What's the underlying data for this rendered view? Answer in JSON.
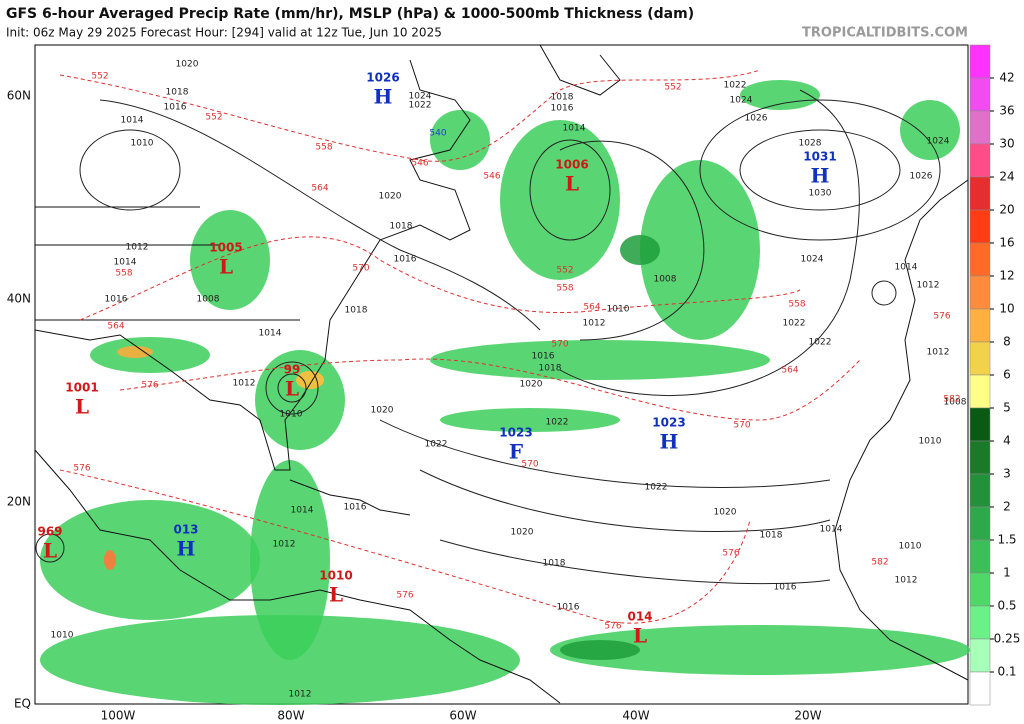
{
  "header": {
    "title": "GFS 6-hour Averaged Precip Rate (mm/hr), MSLP (hPa) & 1000-500mb Thickness (dam)",
    "subtitle": "Init: 06z May 29 2025   Forecast Hour: [294]   valid at 12z Tue, Jun 10 2025",
    "site": "TROPICALTIDBITS.COM"
  },
  "latitude_labels": [
    "60N",
    "40N",
    "20N",
    "EQ"
  ],
  "longitude_labels": [
    "100W",
    "80W",
    "60W",
    "40W",
    "20W"
  ],
  "colorbar": {
    "ticks": [
      42,
      36,
      30,
      24,
      20,
      16,
      12,
      10,
      8,
      6,
      5,
      4,
      3,
      2,
      1.5,
      1,
      0.5,
      0.25,
      0.1
    ],
    "colors": [
      "#ff33ff",
      "#f04cf0",
      "#e070c8",
      "#ff4d8a",
      "#e62e2e",
      "#ff3c14",
      "#ff6a28",
      "#ff8c3c",
      "#ffb040",
      "#f2d24a",
      "#ffff88",
      "#0a5a14",
      "#1a7a28",
      "#23903a",
      "#2ea84a",
      "#3cbf58",
      "#4fd868",
      "#6cf088",
      "#a8ffb8",
      "#ffffff"
    ]
  },
  "pressure_centers": [
    {
      "letter": "H",
      "value": "1026",
      "color": "#1030c0"
    },
    {
      "letter": "L",
      "value": "1006",
      "color": "#d01818"
    },
    {
      "letter": "H",
      "value": "1031",
      "color": "#1030c0"
    },
    {
      "letter": "L",
      "value": "1005",
      "color": "#d01818"
    },
    {
      "letter": "L",
      "value": "1001",
      "color": "#d01818"
    },
    {
      "letter": "L",
      "value": "99",
      "color": "#d01818"
    },
    {
      "letter": "F",
      "value": "1023",
      "color": "#1030c0"
    },
    {
      "letter": "H",
      "value": "1023",
      "color": "#1030c0"
    },
    {
      "letter": "L",
      "value": "969",
      "color": "#d01818"
    },
    {
      "letter": "H",
      "value": "013",
      "color": "#1030c0"
    },
    {
      "letter": "L",
      "value": "1010",
      "color": "#d01818"
    },
    {
      "letter": "L",
      "value": "014",
      "color": "#d01818"
    }
  ],
  "contour_labels": [
    {
      "text": "1020",
      "color": "#222"
    },
    {
      "text": "1018",
      "color": "#222"
    },
    {
      "text": "1016",
      "color": "#222"
    },
    {
      "text": "1014",
      "color": "#222"
    },
    {
      "text": "1010",
      "color": "#222"
    },
    {
      "text": "1012",
      "color": "#222"
    },
    {
      "text": "1014",
      "color": "#222"
    },
    {
      "text": "1016",
      "color": "#222"
    },
    {
      "text": "1008",
      "color": "#222"
    },
    {
      "text": "1014",
      "color": "#222"
    },
    {
      "text": "1012",
      "color": "#222"
    },
    {
      "text": "1010",
      "color": "#222"
    },
    {
      "text": "1020",
      "color": "#222"
    },
    {
      "text": "1022",
      "color": "#222"
    },
    {
      "text": "1018",
      "color": "#222"
    },
    {
      "text": "1016",
      "color": "#222"
    },
    {
      "text": "1020",
      "color": "#222"
    },
    {
      "text": "1022",
      "color": "#222"
    },
    {
      "text": "1022",
      "color": "#222"
    },
    {
      "text": "1020",
      "color": "#222"
    },
    {
      "text": "1018",
      "color": "#222"
    },
    {
      "text": "1016",
      "color": "#222"
    },
    {
      "text": "1020",
      "color": "#222"
    },
    {
      "text": "1018",
      "color": "#222"
    },
    {
      "text": "1016",
      "color": "#222"
    },
    {
      "text": "1024",
      "color": "#222"
    },
    {
      "text": "1022",
      "color": "#222"
    },
    {
      "text": "1022",
      "color": "#222"
    },
    {
      "text": "1030",
      "color": "#222"
    },
    {
      "text": "1028",
      "color": "#222"
    },
    {
      "text": "1026",
      "color": "#222"
    },
    {
      "text": "1024",
      "color": "#222"
    },
    {
      "text": "1022",
      "color": "#222"
    },
    {
      "text": "1018",
      "color": "#222"
    },
    {
      "text": "1016",
      "color": "#222"
    },
    {
      "text": "1014",
      "color": "#222"
    },
    {
      "text": "1012",
      "color": "#222"
    },
    {
      "text": "1010",
      "color": "#222"
    },
    {
      "text": "1008",
      "color": "#222"
    },
    {
      "text": "1016",
      "color": "#222"
    },
    {
      "text": "1014",
      "color": "#222"
    },
    {
      "text": "1012",
      "color": "#222"
    },
    {
      "text": "1014",
      "color": "#222"
    },
    {
      "text": "1010",
      "color": "#222"
    },
    {
      "text": "1012",
      "color": "#222"
    },
    {
      "text": "1014",
      "color": "#222"
    },
    {
      "text": "1012",
      "color": "#222"
    },
    {
      "text": "1012",
      "color": "#222"
    },
    {
      "text": "1008",
      "color": "#222"
    },
    {
      "text": "1010",
      "color": "#222"
    },
    {
      "text": "1024",
      "color": "#222"
    },
    {
      "text": "1026",
      "color": "#222"
    },
    {
      "text": "1010",
      "color": "#222"
    },
    {
      "text": "1012",
      "color": "#222"
    },
    {
      "text": "1018",
      "color": "#222"
    },
    {
      "text": "1016",
      "color": "#222"
    },
    {
      "text": "1018",
      "color": "#222"
    },
    {
      "text": "1020",
      "color": "#222"
    },
    {
      "text": "1024",
      "color": "#222"
    },
    {
      "text": "1022",
      "color": "#222"
    },
    {
      "text": "552",
      "color": "#e03030"
    },
    {
      "text": "552",
      "color": "#e03030"
    },
    {
      "text": "558",
      "color": "#e03030"
    },
    {
      "text": "564",
      "color": "#e03030"
    },
    {
      "text": "546",
      "color": "#e03030"
    },
    {
      "text": "540",
      "color": "#2040d0"
    },
    {
      "text": "546",
      "color": "#e03030"
    },
    {
      "text": "552",
      "color": "#e03030"
    },
    {
      "text": "558",
      "color": "#e03030"
    },
    {
      "text": "564",
      "color": "#e03030"
    },
    {
      "text": "570",
      "color": "#e03030"
    },
    {
      "text": "576",
      "color": "#e03030"
    },
    {
      "text": "576",
      "color": "#e03030"
    },
    {
      "text": "570",
      "color": "#e03030"
    },
    {
      "text": "570",
      "color": "#e03030"
    },
    {
      "text": "564",
      "color": "#e03030"
    },
    {
      "text": "558",
      "color": "#e03030"
    },
    {
      "text": "576",
      "color": "#e03030"
    },
    {
      "text": "576",
      "color": "#e03030"
    },
    {
      "text": "576",
      "color": "#e03030"
    },
    {
      "text": "552",
      "color": "#e03030"
    },
    {
      "text": "570",
      "color": "#e03030"
    },
    {
      "text": "558",
      "color": "#e03030"
    },
    {
      "text": "564",
      "color": "#e03030"
    },
    {
      "text": "582",
      "color": "#e03030"
    },
    {
      "text": "576",
      "color": "#e03030"
    },
    {
      "text": "582",
      "color": "#e03030"
    }
  ]
}
